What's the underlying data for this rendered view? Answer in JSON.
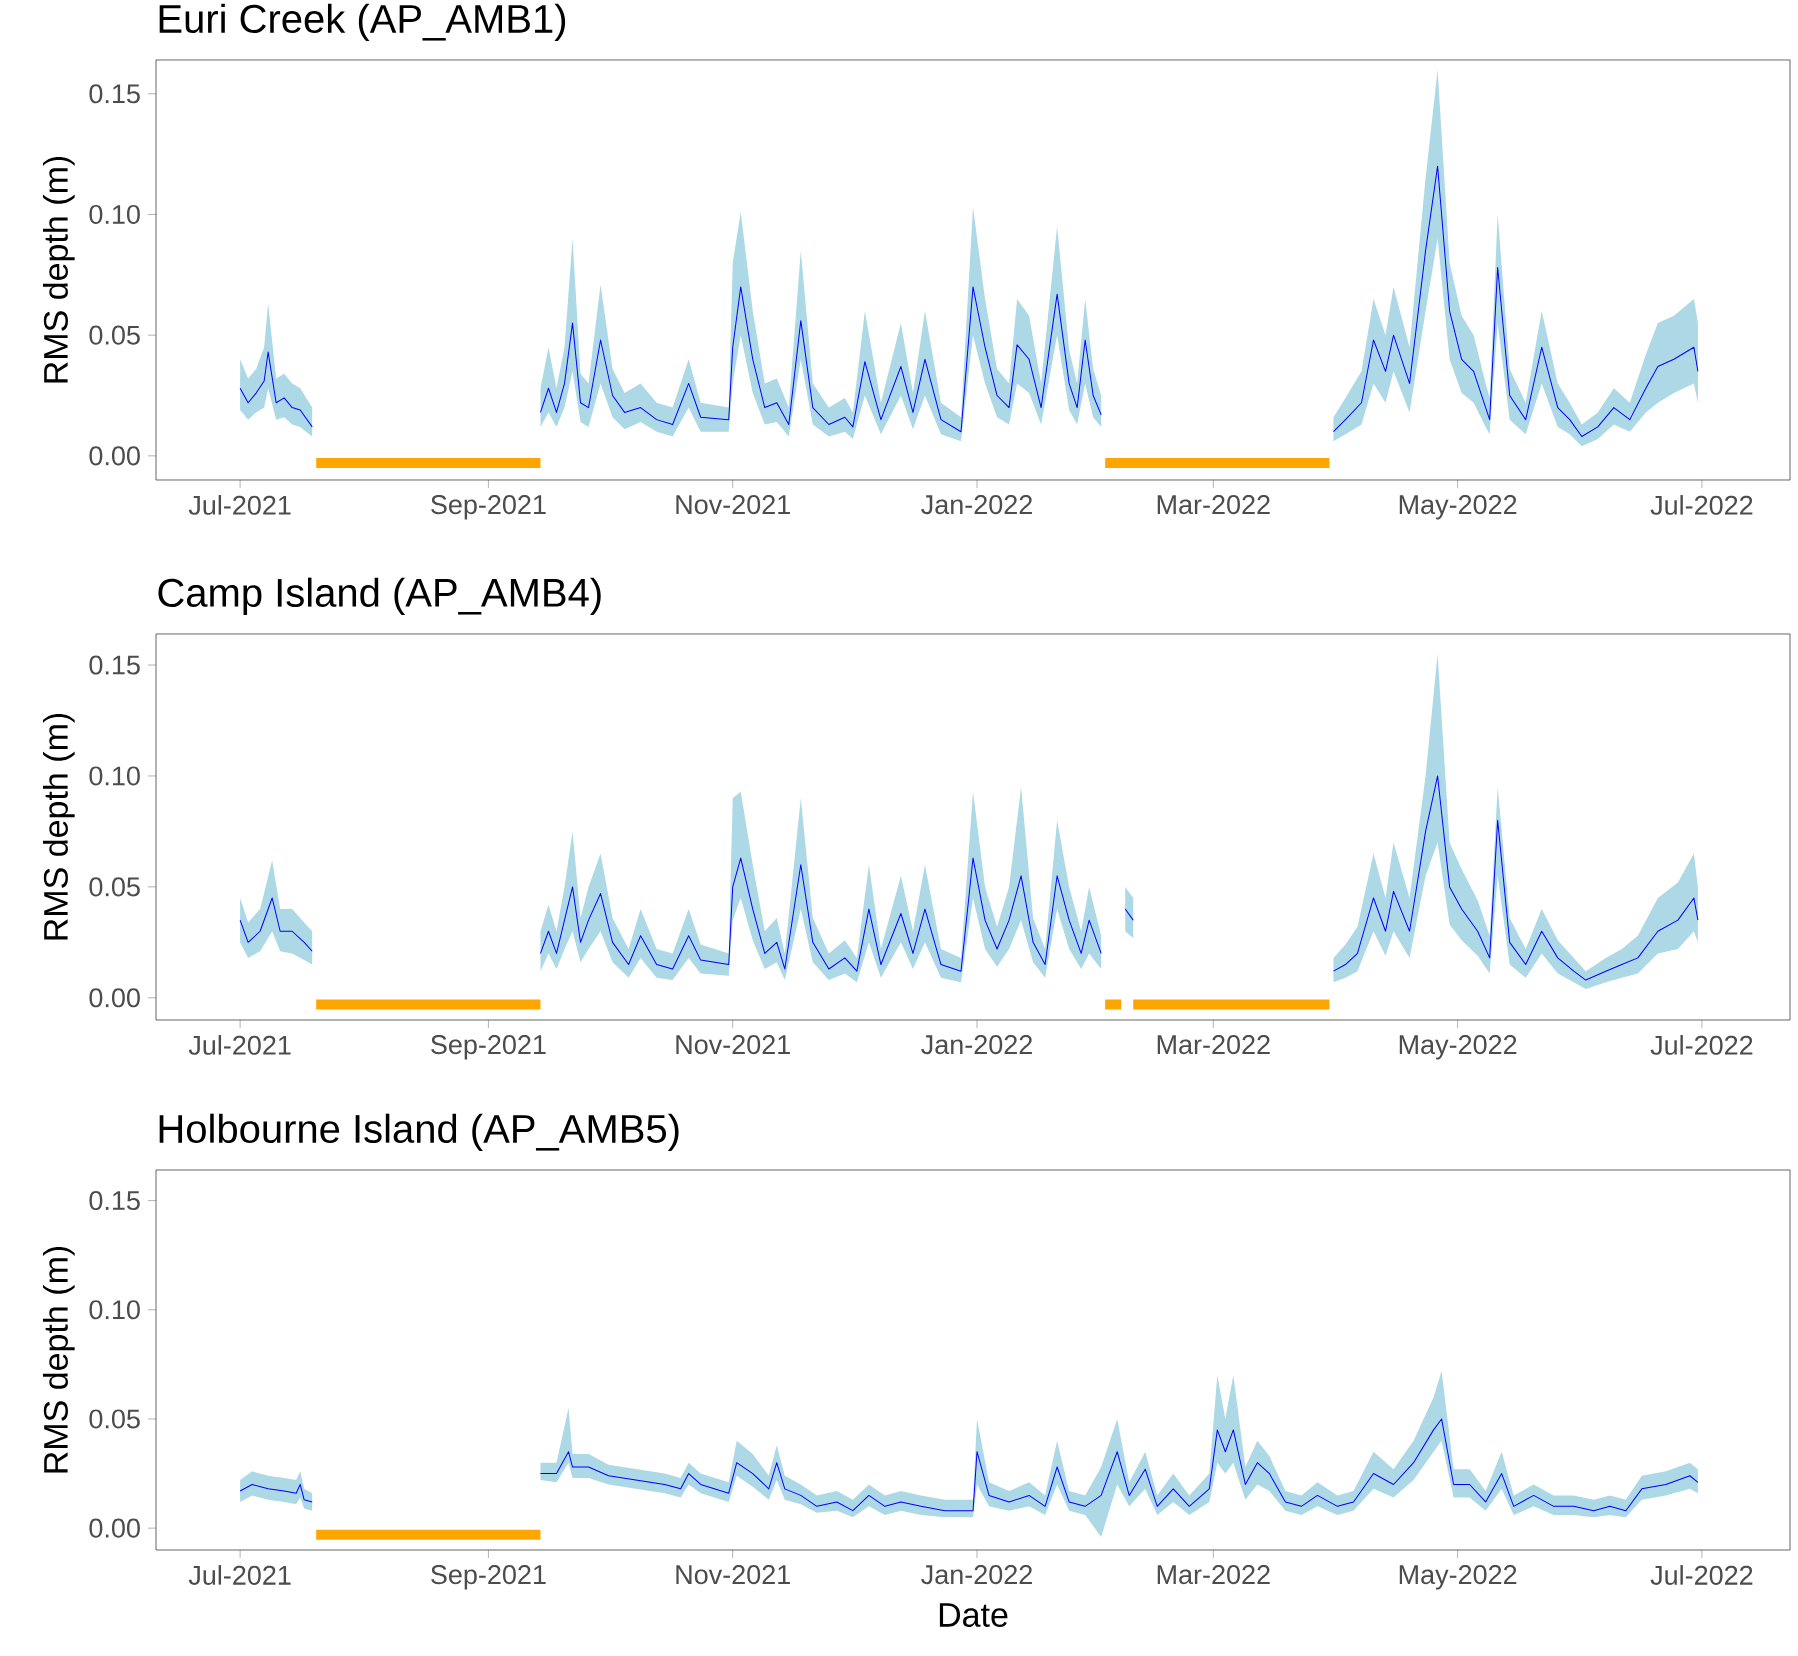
{
  "chart_data": [
    {
      "type": "line",
      "title": "Euri Creek (AP_AMB1)",
      "ylabel": "RMS depth (m)",
      "xlim": [
        "2021-06-10",
        "2022-07-23"
      ],
      "ylim": [
        -0.01,
        0.164
      ],
      "xticks": [
        {
          "value": "2021-07-01",
          "label": "Jul-2021"
        },
        {
          "value": "2021-09-01",
          "label": "Sep-2021"
        },
        {
          "value": "2021-11-01",
          "label": "Nov-2021"
        },
        {
          "value": "2022-01-01",
          "label": "Jan-2022"
        },
        {
          "value": "2022-03-01",
          "label": "Mar-2022"
        },
        {
          "value": "2022-05-01",
          "label": "May-2022"
        },
        {
          "value": "2022-07-01",
          "label": "Jul-2022"
        }
      ],
      "yticks": [
        {
          "value": 0,
          "label": "0.00"
        },
        {
          "value": 0.05,
          "label": "0.05"
        },
        {
          "value": 0.1,
          "label": "0.10"
        },
        {
          "value": 0.15,
          "label": "0.15"
        }
      ],
      "series": [
        {
          "color": "#0000ff",
          "x": [
            "2021-07-01",
            "2021-07-03",
            "2021-07-05",
            "2021-07-07",
            "2021-07-08",
            "2021-07-10",
            "2021-07-12",
            "2021-07-14",
            "2021-07-16",
            "2021-07-19",
            "2021-08-15",
            "2021-09-14",
            "2021-09-16",
            "2021-09-18",
            "2021-09-20",
            "2021-09-22",
            "2021-09-24",
            "2021-09-26",
            "2021-09-29",
            "2021-10-02",
            "2021-10-05",
            "2021-10-09",
            "2021-10-13",
            "2021-10-17",
            "2021-10-21",
            "2021-10-24",
            "2021-10-31",
            "2021-11-01",
            "2021-11-03",
            "2021-11-06",
            "2021-11-09",
            "2021-11-12",
            "2021-11-15",
            "2021-11-18",
            "2021-11-21",
            "2021-11-25",
            "2021-11-29",
            "2021-12-01",
            "2021-12-04",
            "2021-12-08",
            "2021-12-13",
            "2021-12-16",
            "2021-12-19",
            "2021-12-23",
            "2021-12-28",
            "2021-12-31",
            "2022-01-03",
            "2022-01-06",
            "2022-01-09",
            "2022-01-11",
            "2022-01-14",
            "2022-01-17",
            "2022-01-21",
            "2022-01-24",
            "2022-01-26",
            "2022-01-28",
            "2022-01-30",
            "2022-02-01",
            "2022-03-01",
            "2022-03-31",
            "2022-04-03",
            "2022-04-07",
            "2022-04-10",
            "2022-04-13",
            "2022-04-15",
            "2022-04-19",
            "2022-04-23",
            "2022-04-26",
            "2022-04-29",
            "2022-05-02",
            "2022-05-05",
            "2022-05-08",
            "2022-05-09",
            "2022-05-11",
            "2022-05-14",
            "2022-05-18",
            "2022-05-22",
            "2022-05-26",
            "2022-05-29",
            "2022-06-01",
            "2022-06-05",
            "2022-06-09",
            "2022-06-13",
            "2022-06-17",
            "2022-06-20",
            "2022-06-24",
            "2022-06-29",
            "2022-06-30"
          ],
          "values": [
            0.028,
            0.022,
            0.026,
            0.031,
            0.043,
            0.022,
            0.024,
            0.02,
            0.019,
            0.012,
            null,
            0.018,
            0.028,
            0.018,
            0.03,
            0.055,
            0.022,
            0.02,
            0.048,
            0.025,
            0.018,
            0.02,
            0.015,
            0.013,
            0.03,
            0.016,
            0.015,
            0.045,
            0.07,
            0.04,
            0.02,
            0.022,
            0.013,
            0.056,
            0.02,
            0.013,
            0.016,
            0.012,
            0.039,
            0.015,
            0.037,
            0.018,
            0.04,
            0.015,
            0.01,
            0.07,
            0.045,
            0.025,
            0.02,
            0.046,
            0.04,
            0.02,
            0.067,
            0.03,
            0.02,
            0.048,
            0.025,
            0.017,
            null,
            0.01,
            0.015,
            0.022,
            0.048,
            0.035,
            0.05,
            0.03,
            0.085,
            0.12,
            0.06,
            0.04,
            0.035,
            0.02,
            0.015,
            0.078,
            0.025,
            0.015,
            0.045,
            0.02,
            0.015,
            0.008,
            0.012,
            0.02,
            0.015,
            0.028,
            0.037,
            0.04,
            0.045,
            0.035
          ],
          "lower": [
            0.019,
            0.015,
            0.018,
            0.02,
            0.028,
            0.015,
            0.016,
            0.013,
            0.012,
            0.008,
            null,
            0.012,
            0.018,
            0.012,
            0.02,
            0.035,
            0.014,
            0.012,
            0.03,
            0.016,
            0.011,
            0.014,
            0.01,
            0.008,
            0.02,
            0.01,
            0.01,
            0.03,
            0.05,
            0.026,
            0.013,
            0.014,
            0.008,
            0.04,
            0.013,
            0.008,
            0.01,
            0.007,
            0.025,
            0.009,
            0.025,
            0.011,
            0.025,
            0.009,
            0.006,
            0.05,
            0.03,
            0.016,
            0.013,
            0.03,
            0.026,
            0.013,
            0.05,
            0.019,
            0.013,
            0.03,
            0.016,
            0.012,
            null,
            0.006,
            0.009,
            0.013,
            0.03,
            0.022,
            0.035,
            0.018,
            0.06,
            0.09,
            0.04,
            0.026,
            0.022,
            0.012,
            0.009,
            0.055,
            0.015,
            0.009,
            0.03,
            0.012,
            0.009,
            0.004,
            0.007,
            0.013,
            0.01,
            0.018,
            0.022,
            0.026,
            0.03,
            0.022
          ],
          "upper": [
            0.04,
            0.032,
            0.036,
            0.045,
            0.063,
            0.032,
            0.034,
            0.03,
            0.028,
            0.02,
            null,
            0.028,
            0.045,
            0.028,
            0.045,
            0.09,
            0.034,
            0.03,
            0.071,
            0.036,
            0.026,
            0.03,
            0.022,
            0.02,
            0.04,
            0.022,
            0.02,
            0.08,
            0.101,
            0.06,
            0.03,
            0.032,
            0.02,
            0.085,
            0.03,
            0.02,
            0.024,
            0.018,
            0.06,
            0.022,
            0.055,
            0.026,
            0.06,
            0.022,
            0.016,
            0.103,
            0.065,
            0.036,
            0.03,
            0.065,
            0.058,
            0.03,
            0.095,
            0.044,
            0.03,
            0.065,
            0.036,
            0.025,
            null,
            0.016,
            0.024,
            0.035,
            0.065,
            0.05,
            0.07,
            0.045,
            0.115,
            0.16,
            0.08,
            0.058,
            0.05,
            0.03,
            0.024,
            0.1,
            0.036,
            0.022,
            0.06,
            0.03,
            0.022,
            0.013,
            0.018,
            0.028,
            0.022,
            0.042,
            0.055,
            0.058,
            0.065,
            0.055
          ]
        },
        {
          "color": "#ffa500",
          "x": [
            "2021-07-20",
            "2021-09-14",
            "2021-12-01",
            "2022-02-02",
            "2022-03-30"
          ],
          "values": [
            -0.003,
            -0.003,
            null,
            -0.003,
            -0.003
          ]
        }
      ]
    },
    {
      "type": "line",
      "title": "Camp Island (AP_AMB4)",
      "ylabel": "RMS depth (m)",
      "xlim": [
        "2021-06-10",
        "2022-07-23"
      ],
      "ylim": [
        -0.01,
        0.164
      ],
      "xticks": [
        {
          "value": "2021-07-01",
          "label": "Jul-2021"
        },
        {
          "value": "2021-09-01",
          "label": "Sep-2021"
        },
        {
          "value": "2021-11-01",
          "label": "Nov-2021"
        },
        {
          "value": "2022-01-01",
          "label": "Jan-2022"
        },
        {
          "value": "2022-03-01",
          "label": "Mar-2022"
        },
        {
          "value": "2022-05-01",
          "label": "May-2022"
        },
        {
          "value": "2022-07-01",
          "label": "Jul-2022"
        }
      ],
      "yticks": [
        {
          "value": 0,
          "label": "0.00"
        },
        {
          "value": 0.05,
          "label": "0.05"
        },
        {
          "value": 0.1,
          "label": "0.10"
        },
        {
          "value": 0.15,
          "label": "0.15"
        }
      ],
      "series": [
        {
          "color": "#0000ff",
          "x": [
            "2021-07-01",
            "2021-07-03",
            "2021-07-06",
            "2021-07-09",
            "2021-07-11",
            "2021-07-14",
            "2021-07-17",
            "2021-07-19",
            "2021-08-15",
            "2021-09-14",
            "2021-09-16",
            "2021-09-18",
            "2021-09-20",
            "2021-09-22",
            "2021-09-24",
            "2021-09-26",
            "2021-09-29",
            "2021-10-02",
            "2021-10-06",
            "2021-10-09",
            "2021-10-13",
            "2021-10-17",
            "2021-10-21",
            "2021-10-24",
            "2021-10-31",
            "2021-11-01",
            "2021-11-03",
            "2021-11-06",
            "2021-11-09",
            "2021-11-12",
            "2021-11-14",
            "2021-11-18",
            "2021-11-21",
            "2021-11-25",
            "2021-11-29",
            "2021-12-02",
            "2021-12-05",
            "2021-12-08",
            "2021-12-13",
            "2021-12-16",
            "2021-12-19",
            "2021-12-23",
            "2021-12-28",
            "2021-12-31",
            "2022-01-03",
            "2022-01-06",
            "2022-01-09",
            "2022-01-12",
            "2022-01-15",
            "2022-01-18",
            "2022-01-21",
            "2022-01-24",
            "2022-01-27",
            "2022-01-29",
            "2022-02-01",
            "2022-02-04",
            "2022-02-07",
            "2022-02-09",
            "2022-03-01",
            "2022-03-31",
            "2022-04-03",
            "2022-04-06",
            "2022-04-10",
            "2022-04-13",
            "2022-04-15",
            "2022-04-19",
            "2022-04-23",
            "2022-04-26",
            "2022-04-29",
            "2022-05-02",
            "2022-05-06",
            "2022-05-09",
            "2022-05-11",
            "2022-05-14",
            "2022-05-18",
            "2022-05-22",
            "2022-05-26",
            "2022-05-30",
            "2022-06-02",
            "2022-06-07",
            "2022-06-11",
            "2022-06-15",
            "2022-06-20",
            "2022-06-25",
            "2022-06-29",
            "2022-06-30"
          ],
          "values": [
            0.035,
            0.025,
            0.03,
            0.045,
            0.03,
            0.03,
            0.025,
            0.021,
            null,
            0.02,
            0.03,
            0.02,
            0.035,
            0.05,
            0.025,
            0.035,
            0.047,
            0.025,
            0.015,
            0.028,
            0.015,
            0.013,
            0.028,
            0.017,
            0.015,
            0.05,
            0.063,
            0.04,
            0.02,
            0.025,
            0.013,
            0.06,
            0.025,
            0.013,
            0.018,
            0.012,
            0.04,
            0.015,
            0.038,
            0.02,
            0.04,
            0.015,
            0.012,
            0.063,
            0.035,
            0.022,
            0.035,
            0.055,
            0.025,
            0.015,
            0.055,
            0.035,
            0.02,
            0.035,
            0.02,
            null,
            0.04,
            0.035,
            null,
            0.012,
            0.015,
            0.02,
            0.045,
            0.03,
            0.048,
            0.03,
            0.075,
            0.1,
            0.05,
            0.04,
            0.03,
            0.018,
            0.08,
            0.025,
            0.015,
            0.03,
            0.018,
            0.012,
            0.008,
            0.012,
            0.015,
            0.018,
            0.03,
            0.035,
            0.045,
            0.035
          ],
          "lower": [
            0.025,
            0.018,
            0.021,
            0.03,
            0.021,
            0.02,
            0.017,
            0.015,
            null,
            0.012,
            0.02,
            0.013,
            0.022,
            0.03,
            0.016,
            0.022,
            0.03,
            0.016,
            0.009,
            0.018,
            0.009,
            0.008,
            0.018,
            0.011,
            0.01,
            0.035,
            0.045,
            0.026,
            0.013,
            0.016,
            0.008,
            0.04,
            0.016,
            0.008,
            0.011,
            0.007,
            0.025,
            0.009,
            0.025,
            0.013,
            0.025,
            0.009,
            0.007,
            0.045,
            0.022,
            0.014,
            0.022,
            0.035,
            0.016,
            0.009,
            0.04,
            0.022,
            0.013,
            0.02,
            0.013,
            null,
            0.03,
            0.027,
            null,
            0.007,
            0.009,
            0.012,
            0.03,
            0.019,
            0.03,
            0.018,
            0.055,
            0.07,
            0.033,
            0.026,
            0.019,
            0.011,
            0.055,
            0.015,
            0.009,
            0.02,
            0.011,
            0.007,
            0.004,
            0.007,
            0.009,
            0.011,
            0.02,
            0.022,
            0.03,
            0.025
          ],
          "upper": [
            0.045,
            0.034,
            0.04,
            0.062,
            0.04,
            0.04,
            0.034,
            0.03,
            null,
            0.03,
            0.042,
            0.03,
            0.05,
            0.075,
            0.036,
            0.05,
            0.065,
            0.036,
            0.022,
            0.04,
            0.022,
            0.02,
            0.04,
            0.024,
            0.02,
            0.09,
            0.093,
            0.06,
            0.03,
            0.036,
            0.02,
            0.09,
            0.036,
            0.02,
            0.026,
            0.018,
            0.06,
            0.022,
            0.055,
            0.03,
            0.06,
            0.022,
            0.018,
            0.093,
            0.05,
            0.032,
            0.05,
            0.095,
            0.036,
            0.022,
            0.08,
            0.05,
            0.03,
            0.05,
            0.028,
            null,
            0.05,
            0.045,
            null,
            0.018,
            0.024,
            0.032,
            0.065,
            0.045,
            0.07,
            0.045,
            0.1,
            0.155,
            0.07,
            0.058,
            0.044,
            0.028,
            0.095,
            0.036,
            0.022,
            0.04,
            0.026,
            0.018,
            0.012,
            0.018,
            0.022,
            0.028,
            0.045,
            0.052,
            0.065,
            0.05
          ]
        },
        {
          "color": "#ffa500",
          "x": [
            "2021-07-20",
            "2021-09-14",
            "2021-12-01",
            "2022-02-02",
            "2022-02-06",
            "2022-02-07",
            "2022-02-09",
            "2022-03-30"
          ],
          "values": [
            -0.003,
            -0.003,
            null,
            -0.003,
            -0.003,
            null,
            -0.003,
            -0.003
          ]
        }
      ]
    },
    {
      "type": "line",
      "title": "Holbourne Island (AP_AMB5)",
      "ylabel": "RMS depth (m)",
      "xlabel": "Date",
      "xlim": [
        "2021-06-10",
        "2022-07-23"
      ],
      "ylim": [
        -0.01,
        0.164
      ],
      "xticks": [
        {
          "value": "2021-07-01",
          "label": "Jul-2021"
        },
        {
          "value": "2021-09-01",
          "label": "Sep-2021"
        },
        {
          "value": "2021-11-01",
          "label": "Nov-2021"
        },
        {
          "value": "2022-01-01",
          "label": "Jan-2022"
        },
        {
          "value": "2022-03-01",
          "label": "Mar-2022"
        },
        {
          "value": "2022-05-01",
          "label": "May-2022"
        },
        {
          "value": "2022-07-01",
          "label": "Jul-2022"
        }
      ],
      "yticks": [
        {
          "value": 0,
          "label": "0.00"
        },
        {
          "value": 0.05,
          "label": "0.05"
        },
        {
          "value": 0.1,
          "label": "0.10"
        },
        {
          "value": 0.15,
          "label": "0.15"
        }
      ],
      "series": [
        {
          "color": "#0000ff",
          "x": [
            "2021-07-01",
            "2021-07-04",
            "2021-07-08",
            "2021-07-12",
            "2021-07-15",
            "2021-07-16",
            "2021-07-17",
            "2021-07-19",
            "2021-08-15",
            "2021-09-14",
            "2021-09-18",
            "2021-09-21",
            "2021-09-22",
            "2021-09-26",
            "2021-10-01",
            "2021-10-08",
            "2021-10-15",
            "2021-10-19",
            "2021-10-21",
            "2021-10-24",
            "2021-10-31",
            "2021-11-02",
            "2021-11-06",
            "2021-11-10",
            "2021-11-12",
            "2021-11-14",
            "2021-11-18",
            "2021-11-22",
            "2021-11-27",
            "2021-12-01",
            "2021-12-05",
            "2021-12-09",
            "2021-12-13",
            "2021-12-18",
            "2021-12-24",
            "2021-12-31",
            "2022-01-01",
            "2022-01-04",
            "2022-01-09",
            "2022-01-14",
            "2022-01-18",
            "2022-01-21",
            "2022-01-24",
            "2022-01-28",
            "2022-02-01",
            "2022-02-05",
            "2022-02-08",
            "2022-02-12",
            "2022-02-15",
            "2022-02-19",
            "2022-02-23",
            "2022-02-28",
            "2022-03-02",
            "2022-03-04",
            "2022-03-06",
            "2022-03-09",
            "2022-03-12",
            "2022-03-15",
            "2022-03-19",
            "2022-03-23",
            "2022-03-27",
            "2022-04-01",
            "2022-04-05",
            "2022-04-10",
            "2022-04-15",
            "2022-04-20",
            "2022-04-25",
            "2022-04-27",
            "2022-04-30",
            "2022-05-04",
            "2022-05-08",
            "2022-05-12",
            "2022-05-15",
            "2022-05-20",
            "2022-05-25",
            "2022-05-30",
            "2022-06-04",
            "2022-06-08",
            "2022-06-12",
            "2022-06-16",
            "2022-06-22",
            "2022-06-28",
            "2022-06-30"
          ],
          "values": [
            0.017,
            0.02,
            0.018,
            0.017,
            0.016,
            0.02,
            0.013,
            0.012,
            null,
            0.025,
            0.025,
            0.035,
            0.028,
            0.028,
            0.024,
            0.022,
            0.02,
            0.018,
            0.025,
            0.02,
            0.016,
            0.03,
            0.025,
            0.018,
            0.03,
            0.018,
            0.015,
            0.01,
            0.012,
            0.008,
            0.015,
            0.01,
            0.012,
            0.01,
            0.008,
            0.008,
            0.035,
            0.015,
            0.012,
            0.015,
            0.01,
            0.028,
            0.012,
            0.01,
            0.015,
            0.035,
            0.015,
            0.027,
            0.01,
            0.018,
            0.01,
            0.018,
            0.045,
            0.035,
            0.045,
            0.02,
            0.03,
            0.025,
            0.012,
            0.01,
            0.015,
            0.01,
            0.012,
            0.025,
            0.02,
            0.03,
            0.045,
            0.05,
            0.02,
            0.02,
            0.012,
            0.025,
            0.01,
            0.015,
            0.01,
            0.01,
            0.008,
            0.01,
            0.008,
            0.018,
            0.02,
            0.024,
            0.021
          ],
          "lower": [
            0.012,
            0.015,
            0.013,
            0.012,
            0.011,
            0.014,
            0.009,
            0.008,
            null,
            0.022,
            0.021,
            0.03,
            0.023,
            0.023,
            0.02,
            0.018,
            0.016,
            0.014,
            0.02,
            0.016,
            0.012,
            0.024,
            0.019,
            0.013,
            0.022,
            0.013,
            0.011,
            0.007,
            0.008,
            0.005,
            0.01,
            0.006,
            0.008,
            0.006,
            0.005,
            0.005,
            0.02,
            0.01,
            0.008,
            0.01,
            0.006,
            0.02,
            0.008,
            0.006,
            -0.004,
            0.02,
            0.01,
            0.018,
            0.006,
            0.012,
            0.006,
            0.012,
            0.03,
            0.025,
            0.03,
            0.013,
            0.02,
            0.017,
            0.008,
            0.006,
            0.01,
            0.006,
            0.008,
            0.018,
            0.014,
            0.022,
            0.035,
            0.04,
            0.014,
            0.014,
            0.008,
            0.018,
            0.006,
            0.01,
            0.006,
            0.006,
            0.005,
            0.006,
            0.005,
            0.013,
            0.015,
            0.018,
            0.016
          ],
          "upper": [
            0.022,
            0.026,
            0.024,
            0.023,
            0.022,
            0.026,
            0.018,
            0.016,
            null,
            0.03,
            0.03,
            0.055,
            0.034,
            0.034,
            0.029,
            0.027,
            0.025,
            0.023,
            0.03,
            0.025,
            0.021,
            0.04,
            0.034,
            0.024,
            0.038,
            0.024,
            0.02,
            0.015,
            0.017,
            0.013,
            0.02,
            0.015,
            0.017,
            0.015,
            0.013,
            0.013,
            0.05,
            0.021,
            0.017,
            0.021,
            0.015,
            0.04,
            0.017,
            0.015,
            0.028,
            0.05,
            0.021,
            0.035,
            0.015,
            0.025,
            0.015,
            0.025,
            0.07,
            0.05,
            0.07,
            0.028,
            0.04,
            0.033,
            0.017,
            0.015,
            0.021,
            0.015,
            0.017,
            0.035,
            0.027,
            0.04,
            0.06,
            0.072,
            0.027,
            0.027,
            0.017,
            0.035,
            0.015,
            0.02,
            0.015,
            0.015,
            0.013,
            0.015,
            0.013,
            0.024,
            0.026,
            0.03,
            0.027
          ]
        },
        {
          "color": "#ffa500",
          "x": [
            "2021-07-20",
            "2021-09-14"
          ],
          "values": [
            -0.003,
            -0.003
          ]
        }
      ]
    }
  ]
}
